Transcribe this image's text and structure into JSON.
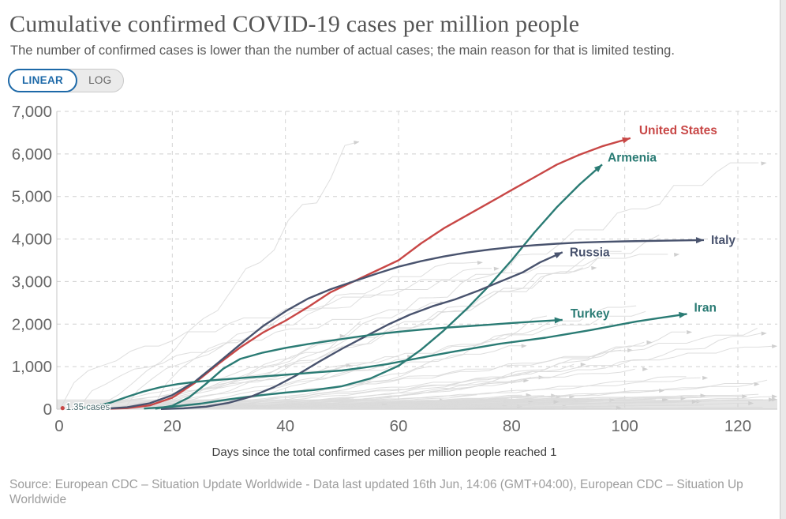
{
  "header": {
    "title": "Cumulative confirmed COVID-19 cases per million people",
    "subtitle": "The number of confirmed cases is lower than the number of actual cases; the main reason for that is limited testing."
  },
  "toolbar": {
    "linear_label": "LINEAR",
    "log_label": "LOG",
    "active": "LINEAR",
    "accent_color": "#1d69a8"
  },
  "chart_data": {
    "type": "line",
    "title": "Cumulative confirmed COVID-19 cases per million people",
    "xlabel": "Days since the total confirmed cases per million people reached 1",
    "ylabel": "",
    "xlim": [
      0,
      127
    ],
    "ylim": [
      0,
      7000
    ],
    "xticks": [
      0,
      20,
      40,
      60,
      80,
      100,
      120
    ],
    "yticks": [
      {
        "value": 0,
        "label": "0"
      },
      {
        "value": 1000,
        "label": "1,000"
      },
      {
        "value": 2000,
        "label": "2,000"
      },
      {
        "value": 3000,
        "label": "3,000"
      },
      {
        "value": 4000,
        "label": "4,000"
      },
      {
        "value": 5000,
        "label": "5,000"
      },
      {
        "value": 6000,
        "label": "6,000"
      },
      {
        "value": 7000,
        "label": "7,000"
      }
    ],
    "grid": true,
    "grid_style": "dashed",
    "legend_position": "end-of-line-labels",
    "annotation": {
      "text": "1.35 cases",
      "x": 0,
      "y": 35,
      "color": "#4a6a6e",
      "dot_color": "#c84746"
    },
    "background_lines": {
      "count": 78,
      "color": "#dadada",
      "description": "unlabeled other-country lines with small end arrows"
    },
    "series": [
      {
        "name": "United States",
        "color": "#c84746",
        "label_offset": [
          11,
          -5
        ],
        "points": [
          [
            8,
            5
          ],
          [
            12,
            25
          ],
          [
            16,
            90
          ],
          [
            20,
            270
          ],
          [
            24,
            620
          ],
          [
            28,
            1050
          ],
          [
            32,
            1450
          ],
          [
            36,
            1800
          ],
          [
            40,
            2080
          ],
          [
            44,
            2400
          ],
          [
            48,
            2750
          ],
          [
            52,
            3000
          ],
          [
            56,
            3250
          ],
          [
            60,
            3500
          ],
          [
            64,
            3900
          ],
          [
            68,
            4250
          ],
          [
            72,
            4550
          ],
          [
            76,
            4850
          ],
          [
            80,
            5150
          ],
          [
            84,
            5450
          ],
          [
            88,
            5750
          ],
          [
            92,
            5980
          ],
          [
            96,
            6180
          ],
          [
            101,
            6370
          ]
        ]
      },
      {
        "name": "Armenia",
        "color": "#2a7b74",
        "label_offset": [
          7,
          -4
        ],
        "points": [
          [
            15,
            15
          ],
          [
            20,
            60
          ],
          [
            25,
            130
          ],
          [
            30,
            230
          ],
          [
            35,
            320
          ],
          [
            40,
            390
          ],
          [
            45,
            450
          ],
          [
            50,
            540
          ],
          [
            55,
            720
          ],
          [
            60,
            1020
          ],
          [
            64,
            1400
          ],
          [
            68,
            1850
          ],
          [
            72,
            2350
          ],
          [
            76,
            2900
          ],
          [
            80,
            3500
          ],
          [
            84,
            4150
          ],
          [
            88,
            4750
          ],
          [
            92,
            5280
          ],
          [
            96,
            5750
          ]
        ]
      },
      {
        "name": "Italy",
        "color": "#49536e",
        "label_offset": [
          9,
          5
        ],
        "points": [
          [
            8,
            10
          ],
          [
            12,
            45
          ],
          [
            16,
            140
          ],
          [
            20,
            330
          ],
          [
            24,
            650
          ],
          [
            28,
            1080
          ],
          [
            32,
            1520
          ],
          [
            36,
            1950
          ],
          [
            40,
            2300
          ],
          [
            44,
            2600
          ],
          [
            48,
            2820
          ],
          [
            52,
            3000
          ],
          [
            56,
            3180
          ],
          [
            60,
            3350
          ],
          [
            64,
            3480
          ],
          [
            68,
            3590
          ],
          [
            72,
            3680
          ],
          [
            76,
            3750
          ],
          [
            80,
            3810
          ],
          [
            84,
            3855
          ],
          [
            88,
            3890
          ],
          [
            92,
            3915
          ],
          [
            96,
            3932
          ],
          [
            100,
            3945
          ],
          [
            104,
            3955
          ],
          [
            108,
            3963
          ],
          [
            114,
            3975
          ]
        ]
      },
      {
        "name": "Russia",
        "color": "#49536e",
        "label_offset": [
          9,
          5
        ],
        "points": [
          [
            18,
            4
          ],
          [
            22,
            20
          ],
          [
            26,
            60
          ],
          [
            30,
            150
          ],
          [
            34,
            300
          ],
          [
            38,
            520
          ],
          [
            42,
            800
          ],
          [
            46,
            1120
          ],
          [
            50,
            1420
          ],
          [
            54,
            1700
          ],
          [
            58,
            1980
          ],
          [
            62,
            2220
          ],
          [
            66,
            2420
          ],
          [
            70,
            2580
          ],
          [
            74,
            2780
          ],
          [
            78,
            3000
          ],
          [
            82,
            3220
          ],
          [
            85,
            3450
          ],
          [
            89,
            3690
          ]
        ]
      },
      {
        "name": "Turkey",
        "color": "#2a7b74",
        "label_offset": [
          10,
          -3
        ],
        "points": [
          [
            17,
            10
          ],
          [
            20,
            80
          ],
          [
            23,
            280
          ],
          [
            26,
            600
          ],
          [
            29,
            950
          ],
          [
            32,
            1180
          ],
          [
            36,
            1330
          ],
          [
            40,
            1440
          ],
          [
            44,
            1530
          ],
          [
            48,
            1610
          ],
          [
            52,
            1690
          ],
          [
            56,
            1760
          ],
          [
            60,
            1820
          ],
          [
            64,
            1870
          ],
          [
            68,
            1915
          ],
          [
            72,
            1950
          ],
          [
            76,
            1985
          ],
          [
            80,
            2025
          ],
          [
            84,
            2060
          ],
          [
            89,
            2100
          ]
        ]
      },
      {
        "name": "Iran",
        "color": "#2a7b74",
        "label_offset": [
          9,
          -3
        ],
        "points": [
          [
            3,
            15
          ],
          [
            6,
            60
          ],
          [
            9,
            150
          ],
          [
            12,
            290
          ],
          [
            15,
            420
          ],
          [
            18,
            520
          ],
          [
            21,
            590
          ],
          [
            24,
            640
          ],
          [
            27,
            680
          ],
          [
            30,
            710
          ],
          [
            34,
            750
          ],
          [
            38,
            790
          ],
          [
            42,
            830
          ],
          [
            46,
            870
          ],
          [
            50,
            910
          ],
          [
            54,
            980
          ],
          [
            58,
            1060
          ],
          [
            62,
            1160
          ],
          [
            66,
            1260
          ],
          [
            70,
            1360
          ],
          [
            74,
            1450
          ],
          [
            78,
            1540
          ],
          [
            82,
            1610
          ],
          [
            86,
            1680
          ],
          [
            90,
            1770
          ],
          [
            94,
            1860
          ],
          [
            98,
            1960
          ],
          [
            102,
            2060
          ],
          [
            106,
            2140
          ],
          [
            111,
            2240
          ]
        ]
      }
    ]
  },
  "footer": {
    "source_line1": "Source: European CDC – Situation Update Worldwide - Data last updated 16th Jun, 14:06 (GMT+04:00), European CDC – Situation Up",
    "source_line2": "Worldwide"
  }
}
